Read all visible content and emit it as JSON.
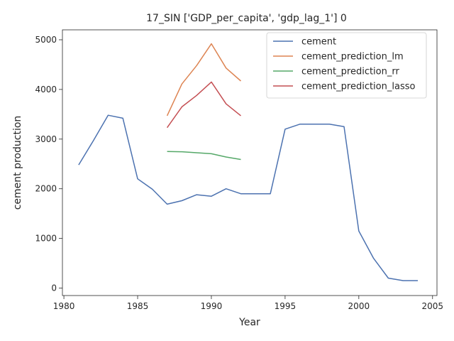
{
  "chart_data": {
    "type": "line",
    "title": "17_SIN ['GDP_per_capita', 'gdp_lag_1'] 0",
    "xlabel": "Year",
    "ylabel": "cement production",
    "xlim": [
      1979.9,
      2005.3
    ],
    "ylim": [
      -150,
      5200
    ],
    "xticks": [
      1980,
      1985,
      1990,
      1995,
      2000,
      2005
    ],
    "yticks": [
      0,
      1000,
      2000,
      3000,
      4000,
      5000
    ],
    "legend_position": "upper-right",
    "grid": false,
    "series": [
      {
        "name": "cement",
        "color": "#4c72b0",
        "x": [
          1981,
          1982,
          1983,
          1984,
          1985,
          1986,
          1987,
          1988,
          1989,
          1990,
          1991,
          1992,
          1993,
          1994,
          1995,
          1996,
          1997,
          1998,
          1999,
          2000,
          2001,
          2002,
          2003,
          2004
        ],
        "y": [
          2480,
          2970,
          3480,
          3420,
          2200,
          1990,
          1690,
          1760,
          1880,
          1850,
          2000,
          1900,
          1900,
          1900,
          3200,
          3300,
          3300,
          3300,
          3250,
          1150,
          600,
          200,
          150,
          150
        ]
      },
      {
        "name": "cement_prediction_lm",
        "color": "#dd8452",
        "x": [
          1987,
          1988,
          1989,
          1990,
          1991,
          1992
        ],
        "y": [
          3470,
          4110,
          4480,
          4920,
          4430,
          4170
        ]
      },
      {
        "name": "cement_prediction_rr",
        "color": "#55a868",
        "x": [
          1987,
          1988,
          1989,
          1990,
          1991,
          1992
        ],
        "y": [
          2750,
          2745,
          2725,
          2705,
          2640,
          2590
        ]
      },
      {
        "name": "cement_prediction_lasso",
        "color": "#c44e52",
        "x": [
          1987,
          1988,
          1989,
          1990,
          1991,
          1992
        ],
        "y": [
          3230,
          3650,
          3880,
          4150,
          3710,
          3470
        ]
      }
    ]
  }
}
